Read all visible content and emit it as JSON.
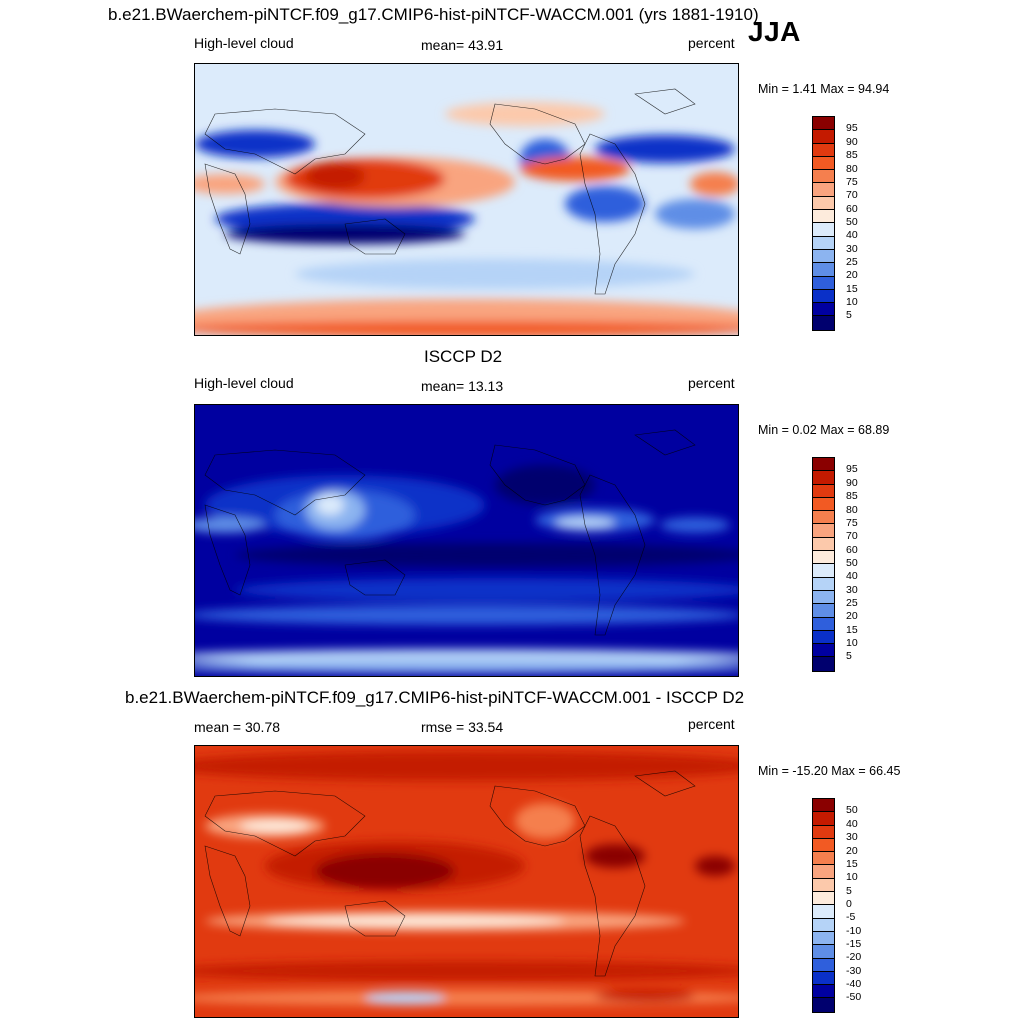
{
  "season": "JJA",
  "panels": [
    {
      "title": "b.e21.BWaerchem-piNTCF.f09_g17.CMIP6-hist-piNTCF-WACCM.001 (yrs 1881-1910)",
      "left_label": "High-level cloud",
      "center_label": "mean=  43.91",
      "right_label": "percent",
      "minmax": "Min =   1.41 Max =  94.94",
      "colorbar": {
        "levels": [
          "95",
          "90",
          "85",
          "80",
          "75",
          "70",
          "60",
          "50",
          "40",
          "30",
          "25",
          "20",
          "15",
          "10",
          "5"
        ],
        "colors": [
          "#8a0000",
          "#c41a00",
          "#e13a10",
          "#f25a23",
          "#f57f4e",
          "#f9a47f",
          "#fcc9ab",
          "#fdebdc",
          "#dcebfb",
          "#b5d3f7",
          "#8cb4f0",
          "#5f8ee6",
          "#2f5fdc",
          "#0a30c8",
          "#0000a0",
          "#00006e"
        ]
      },
      "mean_value": 43.91,
      "min": 1.41,
      "max": 94.94,
      "units": "percent"
    },
    {
      "title": "ISCCP D2",
      "left_label": "High-level cloud",
      "center_label": "mean=  13.13",
      "right_label": "percent",
      "minmax": "Min =   0.02 Max =  68.89",
      "colorbar": {
        "levels": [
          "95",
          "90",
          "85",
          "80",
          "75",
          "70",
          "60",
          "50",
          "40",
          "30",
          "25",
          "20",
          "15",
          "10",
          "5"
        ],
        "colors": [
          "#8a0000",
          "#c41a00",
          "#e13a10",
          "#f25a23",
          "#f57f4e",
          "#f9a47f",
          "#fcc9ab",
          "#fdebdc",
          "#dcebfb",
          "#b5d3f7",
          "#8cb4f0",
          "#5f8ee6",
          "#2f5fdc",
          "#0a30c8",
          "#0000a0",
          "#00006e"
        ]
      },
      "mean_value": 13.13,
      "min": 0.02,
      "max": 68.89,
      "units": "percent"
    },
    {
      "title": "b.e21.BWaerchem-piNTCF.f09_g17.CMIP6-hist-piNTCF-WACCM.001 - ISCCP D2",
      "left_label": "mean =  30.78",
      "center_label": "rmse =  33.54",
      "right_label": "percent",
      "minmax": "Min = -15.20 Max =  66.45",
      "colorbar": {
        "levels": [
          "50",
          "40",
          "30",
          "20",
          "15",
          "10",
          "5",
          "0",
          "-5",
          "-10",
          "-15",
          "-20",
          "-30",
          "-40",
          "-50"
        ],
        "colors": [
          "#8a0000",
          "#c41a00",
          "#e13a10",
          "#f25a23",
          "#f57f4e",
          "#f9a47f",
          "#fcc9ab",
          "#fdebdc",
          "#dcebfb",
          "#b5d3f7",
          "#8cb4f0",
          "#5f8ee6",
          "#2f5fdc",
          "#0a30c8",
          "#0000a0",
          "#00006e"
        ]
      },
      "mean_value": 30.78,
      "rmse": 33.54,
      "min": -15.2,
      "max": 66.45,
      "units": "percent"
    }
  ]
}
